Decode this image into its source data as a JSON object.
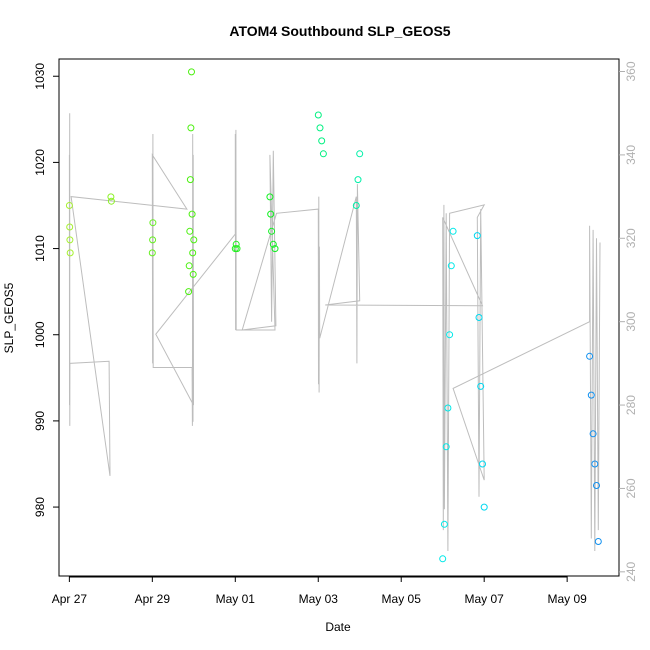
{
  "chart_data": {
    "type": "scatter",
    "title": "ATOM4 Southbound SLP_GEOS5",
    "xlabel": "Date",
    "ylabel": "SLP_GEOS5",
    "xlim": [
      "2015-04-26T18:00",
      "2015-05-10T06:00"
    ],
    "ylim": [
      972,
      1032
    ],
    "right_ylim": [
      239,
      363
    ],
    "x_ticks": [
      "Apr 27",
      "Apr 29",
      "May 01",
      "May 03",
      "May 05",
      "May 07",
      "May 09"
    ],
    "y_ticks": [
      980,
      990,
      1000,
      1010,
      1020,
      1030
    ],
    "right_y_ticks": [
      240,
      260,
      280,
      300,
      320,
      340,
      360
    ],
    "grid": false,
    "colors": {
      "background_track": "#bdbdbd",
      "axis": "#000000",
      "right_axis": "#b0b0b0"
    },
    "series": [
      {
        "color": "#a6f030",
        "points": [
          [
            "2015-04-27T00:00",
            1015.0
          ],
          [
            "2015-04-27T00:10",
            1012.5
          ],
          [
            "2015-04-27T00:20",
            1011.0
          ],
          [
            "2015-04-27T00:30",
            1009.5
          ]
        ]
      },
      {
        "color": "#8cf028",
        "points": [
          [
            "2015-04-28T00:00",
            1016.0
          ],
          [
            "2015-04-28T00:20",
            1015.5
          ]
        ]
      },
      {
        "color": "#66f020",
        "points": [
          [
            "2015-04-29T00:00",
            1009.5
          ],
          [
            "2015-04-29T00:10",
            1011.0
          ],
          [
            "2015-04-29T00:20",
            1013.0
          ]
        ]
      },
      {
        "color": "#4cf010",
        "points": [
          [
            "2015-04-29T21:00",
            1005.0
          ],
          [
            "2015-04-29T21:20",
            1008.0
          ],
          [
            "2015-04-29T21:40",
            1012.0
          ],
          [
            "2015-04-29T22:00",
            1018.0
          ],
          [
            "2015-04-29T22:20",
            1024.0
          ],
          [
            "2015-04-29T22:40",
            1030.5
          ],
          [
            "2015-04-29T23:00",
            1014.0
          ],
          [
            "2015-04-29T23:20",
            1009.5
          ],
          [
            "2015-04-29T23:40",
            1007.0
          ],
          [
            "2015-04-30T00:00",
            1011.0
          ]
        ]
      },
      {
        "color": "#22f020",
        "points": [
          [
            "2015-05-01T00:00",
            1010.0
          ],
          [
            "2015-05-01T00:30",
            1010.5
          ],
          [
            "2015-05-01T01:00",
            1010.0
          ]
        ]
      },
      {
        "color": "#10f020",
        "points": [
          [
            "2015-05-01T20:00",
            1016.0
          ],
          [
            "2015-05-01T20:30",
            1014.0
          ],
          [
            "2015-05-01T21:00",
            1012.0
          ],
          [
            "2015-05-01T22:00",
            1010.5
          ],
          [
            "2015-05-01T23:00",
            1010.0
          ]
        ]
      },
      {
        "color": "#00f080",
        "points": [
          [
            "2015-05-03T00:00",
            1025.5
          ],
          [
            "2015-05-03T01:00",
            1024.0
          ],
          [
            "2015-05-03T02:00",
            1022.5
          ],
          [
            "2015-05-03T03:00",
            1021.0
          ]
        ]
      },
      {
        "color": "#00f0a8",
        "points": [
          [
            "2015-05-03T22:00",
            1015.0
          ],
          [
            "2015-05-03T23:00",
            1018.0
          ],
          [
            "2015-05-04T00:00",
            1021.0
          ]
        ]
      },
      {
        "color": "#00e8e8",
        "points": [
          [
            "2015-05-06T00:00",
            974.0
          ],
          [
            "2015-05-06T01:00",
            978.0
          ],
          [
            "2015-05-06T02:00",
            987.0
          ],
          [
            "2015-05-06T03:00",
            991.5
          ],
          [
            "2015-05-06T04:00",
            1000.0
          ],
          [
            "2015-05-06T05:00",
            1008.0
          ],
          [
            "2015-05-06T06:00",
            1012.0
          ]
        ]
      },
      {
        "color": "#00d8f0",
        "points": [
          [
            "2015-05-06T20:00",
            1011.5
          ],
          [
            "2015-05-06T21:00",
            1002.0
          ],
          [
            "2015-05-06T22:00",
            994.0
          ],
          [
            "2015-05-06T23:00",
            985.0
          ],
          [
            "2015-05-07T00:00",
            980.0
          ]
        ]
      },
      {
        "color": "#1090f0",
        "points": [
          [
            "2015-05-09T13:00",
            997.5
          ],
          [
            "2015-05-09T14:00",
            993.0
          ],
          [
            "2015-05-09T15:00",
            988.5
          ],
          [
            "2015-05-09T16:00",
            985.0
          ],
          [
            "2015-05-09T17:00",
            982.5
          ],
          [
            "2015-05-09T18:00",
            976.0
          ]
        ]
      }
    ],
    "track_line": [
      [
        "2015-04-27T00:00",
        340.0
      ],
      [
        "2015-04-27T00:05",
        280.0
      ],
      [
        "2015-04-27T00:10",
        350.0
      ],
      [
        "2015-04-27T00:15",
        275.0
      ],
      [
        "2015-04-27T00:20",
        290.0
      ],
      [
        "2015-04-27T23:00",
        290.5
      ],
      [
        "2015-04-27T23:30",
        263.0
      ],
      [
        "2015-04-27T01:00",
        330.0
      ],
      [
        "2015-04-29T20:00",
        327.0
      ],
      [
        "2015-04-29T00:00",
        340.0
      ],
      [
        "2015-04-29T00:10",
        290.0
      ],
      [
        "2015-04-29T00:20",
        345.0
      ],
      [
        "2015-04-29T00:30",
        289.0
      ],
      [
        "2015-04-29T23:00",
        289.0
      ],
      [
        "2015-04-29T23:10",
        275.0
      ],
      [
        "2015-04-29T23:20",
        345.0
      ],
      [
        "2015-04-29T23:30",
        276.0
      ],
      [
        "2015-04-29T23:40",
        340.0
      ],
      [
        "2015-04-29T23:50",
        280.0
      ],
      [
        "2015-04-29T02:00",
        297.0
      ],
      [
        "2015-05-01T00:00",
        321.0
      ],
      [
        "2015-05-01T00:00",
        345.0
      ],
      [
        "2015-05-01T00:10",
        298.0
      ],
      [
        "2015-05-01T00:20",
        346.0
      ],
      [
        "2015-05-01T00:30",
        298.0
      ],
      [
        "2015-05-01T23:00",
        298.0
      ],
      [
        "2015-05-01T20:00",
        340.0
      ],
      [
        "2015-05-01T21:00",
        300.0
      ],
      [
        "2015-05-01T22:00",
        341.0
      ],
      [
        "2015-05-01T23:30",
        299.0
      ],
      [
        "2015-05-01T04:00",
        298.0
      ],
      [
        "2015-05-01T23:50",
        326.0
      ],
      [
        "2015-05-03T00:00",
        327.0
      ],
      [
        "2015-05-03T00:10",
        285.0
      ],
      [
        "2015-05-03T00:20",
        330.0
      ],
      [
        "2015-05-03T00:30",
        283.0
      ],
      [
        "2015-05-03T00:40",
        318.0
      ],
      [
        "2015-05-03T00:50",
        296.0
      ],
      [
        "2015-05-03T22:00",
        330.0
      ],
      [
        "2015-05-03T22:20",
        290.0
      ],
      [
        "2015-05-03T22:40",
        333.0
      ],
      [
        "2015-05-04T00:00",
        305.0
      ],
      [
        "2015-05-03T04:00",
        304.0
      ],
      [
        "2015-05-06T23:00",
        303.8
      ],
      [
        "2015-05-06T00:00",
        325.0
      ],
      [
        "2015-05-06T00:20",
        250.0
      ],
      [
        "2015-05-06T00:40",
        328.0
      ],
      [
        "2015-05-06T01:00",
        255.0
      ],
      [
        "2015-05-06T02:00",
        326.0
      ],
      [
        "2015-05-06T03:00",
        245.0
      ],
      [
        "2015-05-06T04:00",
        326.0
      ],
      [
        "2015-05-07T00:00",
        328.0
      ],
      [
        "2015-05-06T20:00",
        325.0
      ],
      [
        "2015-05-06T21:00",
        258.0
      ],
      [
        "2015-05-06T22:00",
        327.0
      ],
      [
        "2015-05-07T00:00",
        262.0
      ],
      [
        "2015-05-06T06:00",
        284.0
      ],
      [
        "2015-05-09T13:00",
        300.0
      ],
      [
        "2015-05-09T13:00",
        323.0
      ],
      [
        "2015-05-09T14:00",
        248.0
      ],
      [
        "2015-05-09T15:00",
        322.0
      ],
      [
        "2015-05-09T16:00",
        245.0
      ],
      [
        "2015-05-09T17:00",
        320.0
      ],
      [
        "2015-05-09T18:00",
        250.0
      ],
      [
        "2015-05-09T19:00",
        319.0
      ]
    ]
  }
}
